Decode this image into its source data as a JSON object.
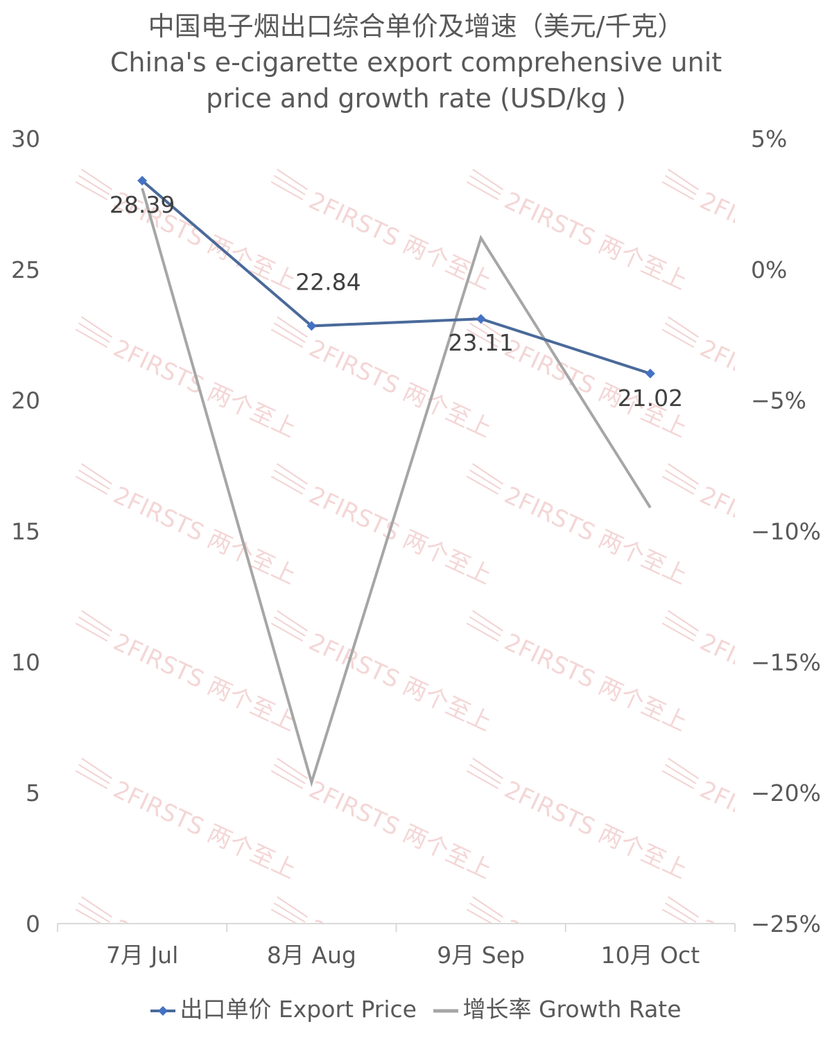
{
  "colors": {
    "export_price": "#4a6a9a",
    "growth_rate": "#a6a6a6",
    "marker": "#4472c4",
    "axis": "#d9d9d9",
    "text": "#595959",
    "watermark": "#e7a6a6"
  },
  "watermark_text": "2FIRSTS 两个至上",
  "chart_data": {
    "type": "line",
    "title": "中国电子烟出口综合单价及增速（美元/千克）",
    "subtitle": "China's e-cigarette export comprehensive unit price and growth rate (USD/kg )",
    "subtitle_lines": [
      "China's e-cigarette export comprehensive unit",
      "price and growth rate (USD/kg )"
    ],
    "categories": [
      "7月 Jul",
      "8月 Aug",
      "9月 Sep",
      "10月 Oct"
    ],
    "y_left": {
      "ylim": [
        0,
        30
      ],
      "ticks": [
        0,
        5,
        10,
        15,
        20,
        25,
        30
      ],
      "tick_labels": [
        "0",
        "5",
        "10",
        "15",
        "20",
        "25",
        "30"
      ]
    },
    "y_right": {
      "ylim": [
        -25,
        5
      ],
      "ticks": [
        -25,
        -20,
        -15,
        -10,
        -5,
        0,
        5
      ],
      "tick_labels": [
        "−25%",
        "−20%",
        "−15%",
        "−10%",
        "−5%",
        "0%",
        "5%"
      ]
    },
    "series": [
      {
        "name": "出口单价 Export Price",
        "axis": "left",
        "values": [
          28.39,
          22.84,
          23.11,
          21.02
        ],
        "data_labels": [
          "28.39",
          "22.84",
          "23.11",
          "21.02"
        ],
        "marker": "diamond"
      },
      {
        "name": "增长率 Growth Rate",
        "axis": "right",
        "values": [
          3.1,
          -19.6,
          1.2,
          -9.1
        ],
        "marker": "none"
      }
    ],
    "legend": "bottom",
    "grid": false
  }
}
